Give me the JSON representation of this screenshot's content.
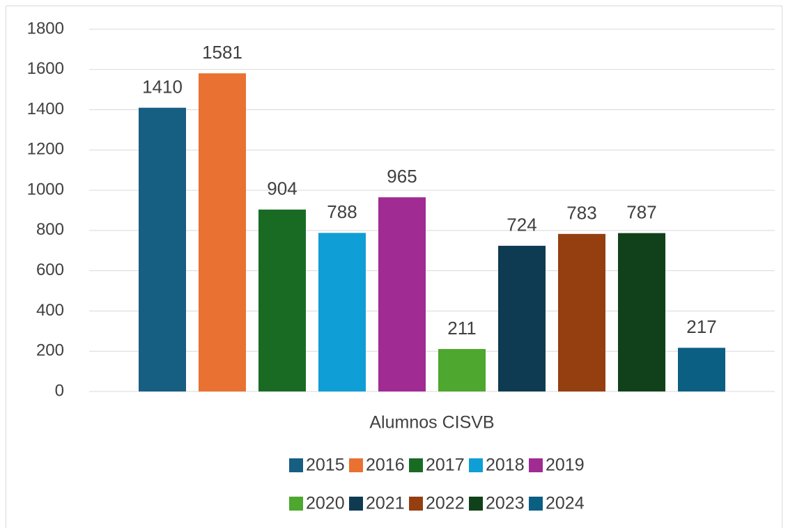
{
  "chart_data": {
    "type": "bar",
    "categories": [
      "Alumnos CISVB"
    ],
    "series": [
      {
        "name": "2015",
        "color": "#175e83",
        "values": [
          1410
        ]
      },
      {
        "name": "2016",
        "color": "#e97132",
        "values": [
          1581
        ]
      },
      {
        "name": "2017",
        "color": "#196b24",
        "values": [
          904
        ]
      },
      {
        "name": "2018",
        "color": "#0f9ed5",
        "values": [
          788
        ]
      },
      {
        "name": "2019",
        "color": "#a02b93",
        "values": [
          965
        ]
      },
      {
        "name": "2020",
        "color": "#4ea72e",
        "values": [
          211
        ]
      },
      {
        "name": "2021",
        "color": "#0e3a52",
        "values": [
          724
        ]
      },
      {
        "name": "2022",
        "color": "#953f11",
        "values": [
          783
        ]
      },
      {
        "name": "2023",
        "color": "#10411b",
        "values": [
          787
        ]
      },
      {
        "name": "2024",
        "color": "#0b5f83",
        "values": [
          217
        ]
      }
    ],
    "ylim": [
      0,
      1800
    ],
    "yticks": [
      0,
      200,
      400,
      600,
      800,
      1000,
      1200,
      1400,
      1600,
      1800
    ],
    "grid": true,
    "legend": "bottom"
  }
}
